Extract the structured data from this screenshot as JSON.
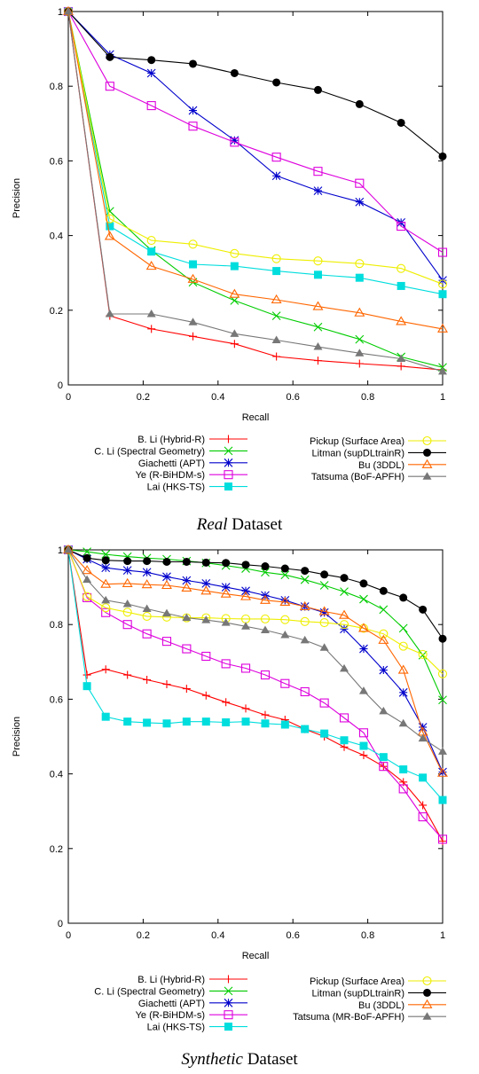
{
  "chart_data": [
    {
      "type": "line",
      "caption_em": "Real",
      "caption_rest": " Dataset",
      "xlabel": "Recall",
      "ylabel": "Precision",
      "xlim": [
        0,
        1
      ],
      "ylim": [
        0,
        1
      ],
      "xticks": [
        "0",
        "0.2",
        "0.4",
        "0.6",
        "0.8",
        "1"
      ],
      "yticks": [
        "0",
        "0.2",
        "0.4",
        "0.6",
        "0.8",
        "1"
      ],
      "grid": false,
      "legend_placement": "below",
      "series": [
        {
          "name": "B. Li (Hybrid-R)",
          "color": "#ff0000",
          "marker": "plus",
          "x": [
            0,
            0.111,
            0.222,
            0.333,
            0.444,
            0.556,
            0.667,
            0.778,
            0.889,
            1.0
          ],
          "y": [
            1.0,
            0.185,
            0.15,
            0.13,
            0.11,
            0.076,
            0.065,
            0.057,
            0.05,
            0.04
          ]
        },
        {
          "name": "C. Li (Spectral Geometry)",
          "color": "#00cc00",
          "marker": "x",
          "x": [
            0,
            0.111,
            0.222,
            0.333,
            0.444,
            0.556,
            0.667,
            0.778,
            0.889,
            1.0
          ],
          "y": [
            1.0,
            0.465,
            0.36,
            0.275,
            0.226,
            0.185,
            0.155,
            0.122,
            0.075,
            0.047
          ]
        },
        {
          "name": "Giachetti (APT)",
          "color": "#0000cc",
          "marker": "star",
          "x": [
            0,
            0.111,
            0.222,
            0.333,
            0.444,
            0.556,
            0.667,
            0.778,
            0.889,
            1.0
          ],
          "y": [
            1.0,
            0.885,
            0.835,
            0.735,
            0.655,
            0.56,
            0.52,
            0.49,
            0.435,
            0.28
          ]
        },
        {
          "name": "Ye (R-BiHDM-s)",
          "color": "#dd00dd",
          "marker": "square",
          "x": [
            0,
            0.111,
            0.222,
            0.333,
            0.444,
            0.556,
            0.667,
            0.778,
            0.889,
            1.0
          ],
          "y": [
            1.0,
            0.8,
            0.748,
            0.693,
            0.65,
            0.61,
            0.572,
            0.54,
            0.425,
            0.355
          ]
        },
        {
          "name": "Lai (HKS-TS)",
          "color": "#00dddd",
          "marker": "fsquare",
          "x": [
            0,
            0.111,
            0.222,
            0.333,
            0.444,
            0.556,
            0.667,
            0.778,
            0.889,
            1.0
          ],
          "y": [
            1.0,
            0.425,
            0.357,
            0.323,
            0.318,
            0.305,
            0.295,
            0.287,
            0.265,
            0.243
          ]
        },
        {
          "name": "Pickup (Surface Area)",
          "color": "#eeee00",
          "marker": "circle",
          "x": [
            0,
            0.111,
            0.222,
            0.333,
            0.444,
            0.556,
            0.667,
            0.778,
            0.889,
            1.0
          ],
          "y": [
            1.0,
            0.445,
            0.387,
            0.377,
            0.352,
            0.338,
            0.332,
            0.325,
            0.312,
            0.27
          ]
        },
        {
          "name": "Litman (supDLtrainR)",
          "color": "#000000",
          "marker": "fcircle",
          "x": [
            0,
            0.111,
            0.222,
            0.333,
            0.444,
            0.556,
            0.667,
            0.778,
            0.889,
            1.0
          ],
          "y": [
            1.0,
            0.878,
            0.87,
            0.86,
            0.835,
            0.81,
            0.79,
            0.752,
            0.702,
            0.612
          ]
        },
        {
          "name": "Bu (3DDL)",
          "color": "#ff6600",
          "marker": "triangle",
          "x": [
            0,
            0.111,
            0.222,
            0.333,
            0.444,
            0.556,
            0.667,
            0.778,
            0.889,
            1.0
          ],
          "y": [
            1.0,
            0.398,
            0.318,
            0.283,
            0.243,
            0.228,
            0.21,
            0.193,
            0.17,
            0.15
          ]
        },
        {
          "name": "Tatsuma (BoF-APFH)",
          "color": "#777777",
          "marker": "ftriangle",
          "x": [
            0,
            0.111,
            0.222,
            0.333,
            0.444,
            0.556,
            0.667,
            0.778,
            0.889,
            1.0
          ],
          "y": [
            1.0,
            0.19,
            0.19,
            0.168,
            0.137,
            0.12,
            0.102,
            0.085,
            0.07,
            0.036
          ]
        }
      ]
    },
    {
      "type": "line",
      "caption_em": "Synthetic",
      "caption_rest": " Dataset",
      "xlabel": "Recall",
      "ylabel": "Precision",
      "xlim": [
        0,
        1
      ],
      "ylim": [
        0,
        1
      ],
      "xticks": [
        "0",
        "0.2",
        "0.4",
        "0.6",
        "0.8",
        "1"
      ],
      "yticks": [
        "0",
        "0.2",
        "0.4",
        "0.6",
        "0.8",
        "1"
      ],
      "grid": false,
      "legend_placement": "below",
      "series": [
        {
          "name": "B. Li (Hybrid-R)",
          "color": "#ff0000",
          "marker": "plus",
          "x": [
            0,
            0.05,
            0.1,
            0.158,
            0.21,
            0.263,
            0.316,
            0.368,
            0.421,
            0.474,
            0.526,
            0.579,
            0.632,
            0.684,
            0.737,
            0.789,
            0.842,
            0.895,
            0.947,
            1.0
          ],
          "y": [
            1.0,
            0.665,
            0.68,
            0.665,
            0.652,
            0.64,
            0.628,
            0.61,
            0.592,
            0.575,
            0.558,
            0.545,
            0.52,
            0.5,
            0.472,
            0.45,
            0.42,
            0.378,
            0.316,
            0.22
          ]
        },
        {
          "name": "C. Li (Spectral Geometry)",
          "color": "#00cc00",
          "marker": "x",
          "x": [
            0,
            0.05,
            0.1,
            0.158,
            0.21,
            0.263,
            0.316,
            0.368,
            0.421,
            0.474,
            0.526,
            0.579,
            0.632,
            0.684,
            0.737,
            0.789,
            0.842,
            0.895,
            0.947,
            1.0
          ],
          "y": [
            1.0,
            0.995,
            0.988,
            0.982,
            0.978,
            0.975,
            0.97,
            0.965,
            0.958,
            0.95,
            0.94,
            0.933,
            0.92,
            0.905,
            0.888,
            0.868,
            0.84,
            0.79,
            0.718,
            0.598
          ]
        },
        {
          "name": "Giachetti (APT)",
          "color": "#0000cc",
          "marker": "star",
          "x": [
            0,
            0.05,
            0.1,
            0.158,
            0.21,
            0.263,
            0.316,
            0.368,
            0.421,
            0.474,
            0.526,
            0.579,
            0.632,
            0.684,
            0.737,
            0.789,
            0.842,
            0.895,
            0.947,
            1.0
          ],
          "y": [
            1.0,
            0.975,
            0.952,
            0.945,
            0.94,
            0.928,
            0.918,
            0.91,
            0.9,
            0.89,
            0.878,
            0.865,
            0.848,
            0.832,
            0.788,
            0.735,
            0.678,
            0.618,
            0.525,
            0.405
          ]
        },
        {
          "name": "Ye (R-BiHDM-s)",
          "color": "#dd00dd",
          "marker": "square",
          "x": [
            0,
            0.05,
            0.1,
            0.158,
            0.21,
            0.263,
            0.316,
            0.368,
            0.421,
            0.474,
            0.526,
            0.579,
            0.632,
            0.684,
            0.737,
            0.789,
            0.842,
            0.895,
            0.947,
            1.0
          ],
          "y": [
            1.0,
            0.872,
            0.832,
            0.8,
            0.775,
            0.755,
            0.735,
            0.715,
            0.695,
            0.683,
            0.665,
            0.642,
            0.62,
            0.59,
            0.55,
            0.51,
            0.42,
            0.36,
            0.285,
            0.225
          ]
        },
        {
          "name": "Lai (HKS-TS)",
          "color": "#00dddd",
          "marker": "fsquare",
          "x": [
            0,
            0.05,
            0.1,
            0.158,
            0.21,
            0.263,
            0.316,
            0.368,
            0.421,
            0.474,
            0.526,
            0.579,
            0.632,
            0.684,
            0.737,
            0.789,
            0.842,
            0.895,
            0.947,
            1.0
          ],
          "y": [
            1.0,
            0.635,
            0.553,
            0.54,
            0.537,
            0.535,
            0.54,
            0.54,
            0.538,
            0.54,
            0.535,
            0.532,
            0.52,
            0.508,
            0.49,
            0.475,
            0.445,
            0.412,
            0.39,
            0.33
          ]
        },
        {
          "name": "Pickup (Surface Area)",
          "color": "#eeee00",
          "marker": "circle",
          "x": [
            0,
            0.05,
            0.1,
            0.158,
            0.21,
            0.263,
            0.316,
            0.368,
            0.421,
            0.474,
            0.526,
            0.579,
            0.632,
            0.684,
            0.737,
            0.789,
            0.842,
            0.895,
            0.947,
            1.0
          ],
          "y": [
            1.0,
            0.875,
            0.845,
            0.833,
            0.822,
            0.82,
            0.818,
            0.818,
            0.816,
            0.815,
            0.815,
            0.813,
            0.808,
            0.805,
            0.8,
            0.79,
            0.775,
            0.742,
            0.72,
            0.668
          ]
        },
        {
          "name": "Litman (supDLtrainR)",
          "color": "#000000",
          "marker": "fcircle",
          "x": [
            0,
            0.05,
            0.1,
            0.158,
            0.21,
            0.263,
            0.316,
            0.368,
            0.421,
            0.474,
            0.526,
            0.579,
            0.632,
            0.684,
            0.737,
            0.789,
            0.842,
            0.895,
            0.947,
            1.0
          ],
          "y": [
            1.0,
            0.978,
            0.972,
            0.97,
            0.97,
            0.968,
            0.968,
            0.966,
            0.965,
            0.96,
            0.956,
            0.95,
            0.944,
            0.934,
            0.925,
            0.91,
            0.89,
            0.872,
            0.84,
            0.762
          ]
        },
        {
          "name": "Bu (3DDL)",
          "color": "#ff6600",
          "marker": "triangle",
          "x": [
            0,
            0.05,
            0.1,
            0.158,
            0.21,
            0.263,
            0.316,
            0.368,
            0.421,
            0.474,
            0.526,
            0.579,
            0.632,
            0.684,
            0.737,
            0.789,
            0.842,
            0.895,
            0.947,
            1.0
          ],
          "y": [
            1.0,
            0.945,
            0.908,
            0.91,
            0.907,
            0.905,
            0.898,
            0.89,
            0.882,
            0.875,
            0.865,
            0.86,
            0.848,
            0.835,
            0.825,
            0.79,
            0.758,
            0.678,
            0.512,
            0.402
          ]
        },
        {
          "name": "Tatsuma (MR-BoF-APFH)",
          "color": "#777777",
          "marker": "ftriangle",
          "x": [
            0,
            0.05,
            0.1,
            0.158,
            0.21,
            0.263,
            0.316,
            0.368,
            0.421,
            0.474,
            0.526,
            0.579,
            0.632,
            0.684,
            0.737,
            0.789,
            0.842,
            0.895,
            0.947,
            1.0
          ],
          "y": [
            1.0,
            0.92,
            0.865,
            0.855,
            0.842,
            0.83,
            0.818,
            0.812,
            0.805,
            0.795,
            0.785,
            0.772,
            0.758,
            0.738,
            0.682,
            0.622,
            0.568,
            0.535,
            0.495,
            0.46
          ]
        }
      ]
    }
  ]
}
